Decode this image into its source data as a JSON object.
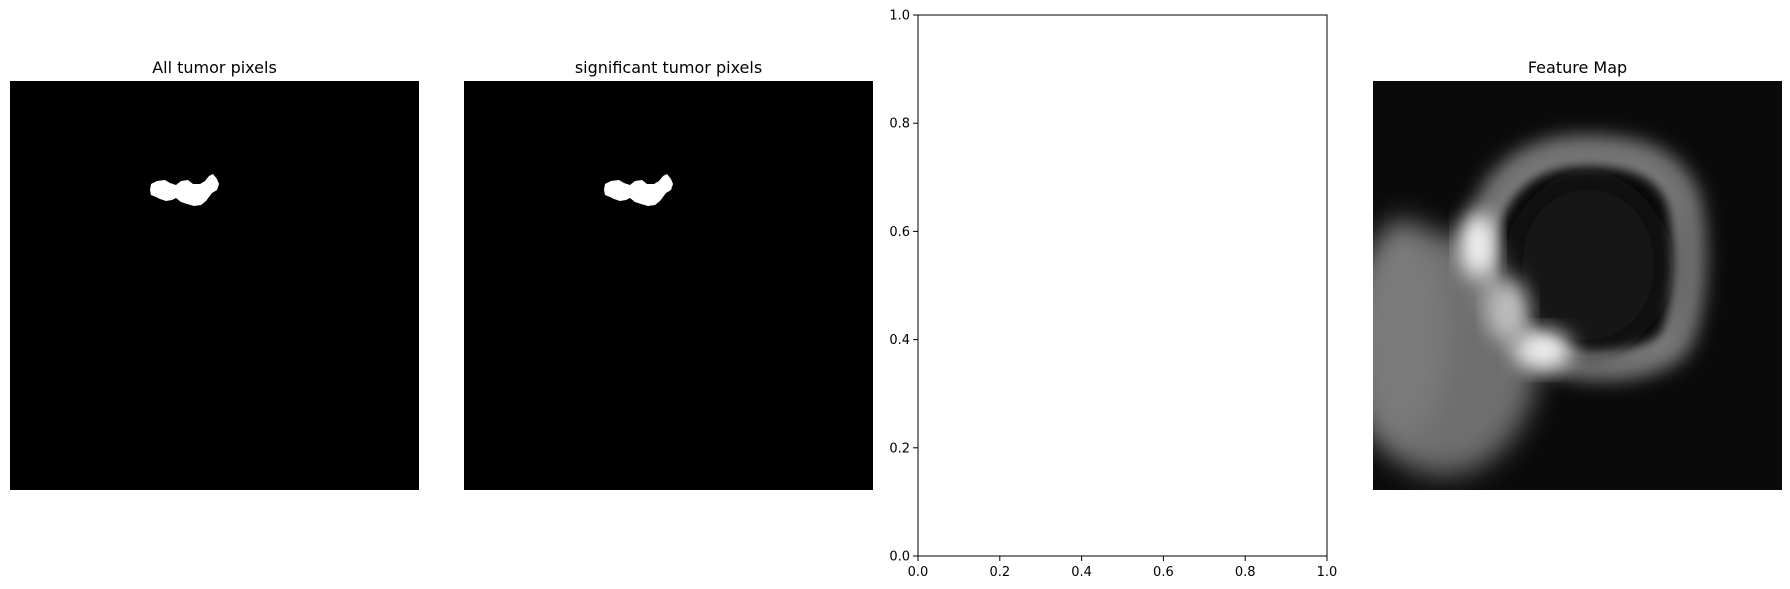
{
  "chart_data": [
    {
      "type": "image",
      "title": "All tumor pixels",
      "colormap": "gray",
      "axes_visible": false,
      "content": "binary-mask"
    },
    {
      "type": "image",
      "title": "significant tumor pixels",
      "colormap": "gray",
      "axes_visible": false,
      "content": "binary-mask"
    },
    {
      "type": "scatter",
      "title": "",
      "xlabel": "",
      "ylabel": "",
      "xlim": [
        0,
        1
      ],
      "ylim": [
        0,
        1
      ],
      "x_ticks": [
        "0.0",
        "0.2",
        "0.4",
        "0.6",
        "0.8",
        "1.0"
      ],
      "y_ticks": [
        "0.0",
        "0.2",
        "0.4",
        "0.6",
        "0.8",
        "1.0"
      ],
      "grid": false,
      "series": []
    },
    {
      "type": "image",
      "title": "Feature Map",
      "colormap": "gray",
      "axes_visible": false,
      "content": "feature-activation"
    }
  ],
  "colors": {
    "background": "#ffffff",
    "image_background": "#000000",
    "mask": "#ffffff"
  }
}
